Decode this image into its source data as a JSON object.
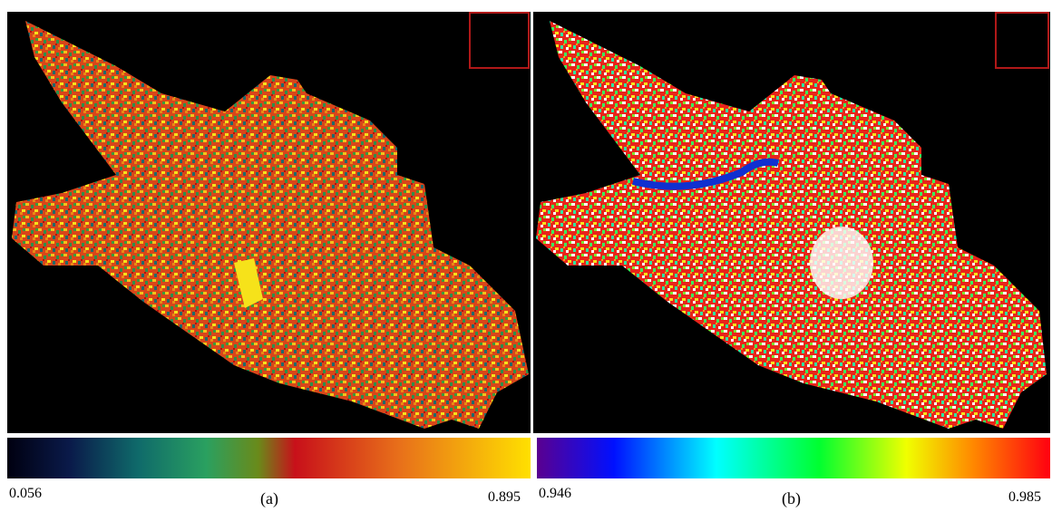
{
  "panels": [
    {
      "label": "(a)",
      "min_label": "0.056",
      "max_label": "0.895"
    },
    {
      "label": "(b)",
      "min_label": "0.946",
      "max_label": "0.985"
    }
  ]
}
